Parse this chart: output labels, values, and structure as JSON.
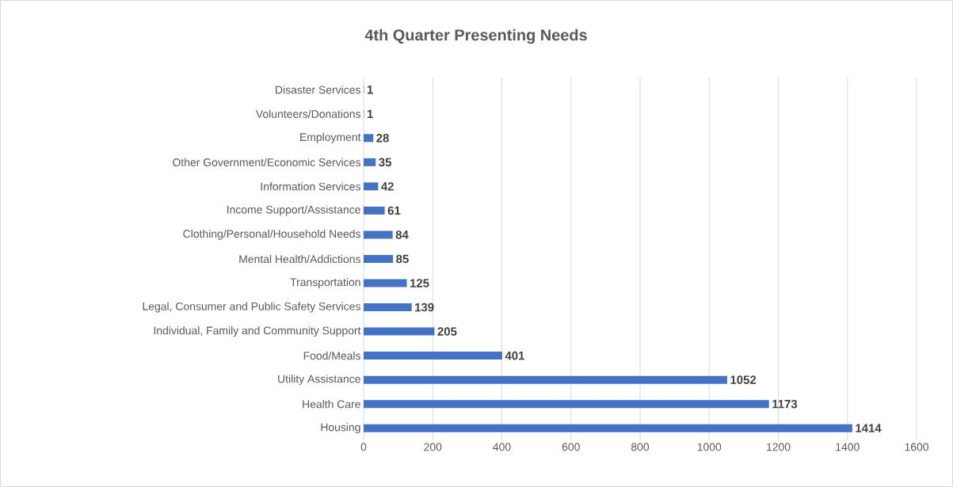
{
  "chart_data": {
    "type": "bar",
    "orientation": "horizontal",
    "title": "4th Quarter Presenting Needs",
    "categories": [
      "Disaster Services",
      "Volunteers/Donations",
      "Employment",
      "Other Government/Economic Services",
      "Information Services",
      "Income Support/Assistance",
      "Clothing/Personal/Household Needs",
      "Mental Health/Addictions",
      "Transportation",
      "Legal, Consumer and Public Safety Services",
      "Individual, Family and Community Support",
      "Food/Meals",
      "Utility Assistance",
      "Health Care",
      "Housing"
    ],
    "values": [
      1,
      1,
      28,
      35,
      42,
      61,
      84,
      85,
      125,
      139,
      205,
      401,
      1052,
      1173,
      1414
    ],
    "color": "#4472c4",
    "xlim": [
      0,
      1600
    ],
    "xticks": [
      0,
      200,
      400,
      600,
      800,
      1000,
      1200,
      1400,
      1600
    ],
    "grid": "x",
    "data_labels": true
  }
}
